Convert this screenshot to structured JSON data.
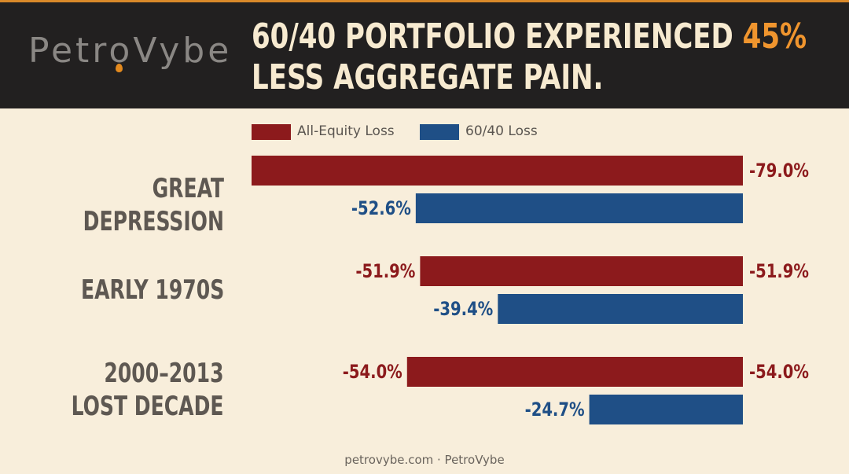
{
  "header": {
    "logo_text": "PetroVybe",
    "title_line1_prefix": "60/40 Portfolio Experienced ",
    "title_line1_accent": "45%",
    "title_line2": "Less Aggregate Pain."
  },
  "colors": {
    "equity": "#8c1a1c",
    "sixty_forty": "#1f4f86",
    "accent": "#f0952e",
    "header_bg": "#222020",
    "page_bg": "#f8eedb"
  },
  "footer": {
    "text": "petrovybe.com · PetroVybe"
  },
  "chart_data": {
    "type": "bar",
    "orientation": "horizontal",
    "categories": [
      "Great Depression",
      "Early 1970s",
      "2000–2013\nLost Decade"
    ],
    "series": [
      {
        "name": "All-Equity Loss",
        "values": [
          -79.0,
          -51.9,
          -54.0
        ],
        "labels": [
          "-79.0%",
          "-51.9%",
          "-54.0%"
        ]
      },
      {
        "name": "60/40 Loss",
        "values": [
          -52.6,
          -39.4,
          -24.7
        ],
        "labels": [
          "-52.6%",
          "-39.4%",
          "-24.7%"
        ]
      }
    ],
    "extra_labels": [
      "",
      "-51.9%",
      "-54.0%"
    ],
    "legend_placement": "top",
    "grid": false
  }
}
